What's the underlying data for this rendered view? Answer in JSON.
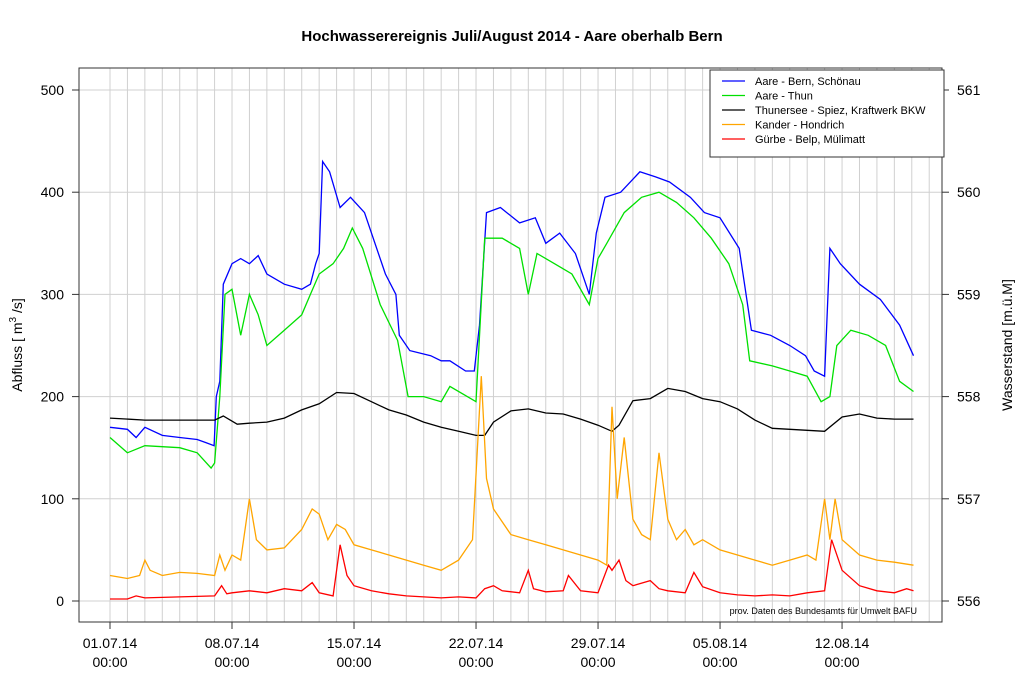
{
  "chart_data": {
    "type": "line",
    "title": "Hochwasserereignis Juli/August 2014 - Aare oberhalb Bern",
    "ylabel": "Abfluss [ m³/s]",
    "ylabel_main": "Abfluss [ m",
    "ylabel_sup": "3",
    "ylabel_end": " /s]",
    "y2label": "Wasserstand [m.ü.M]",
    "note": "prov. Daten des Bundesamts für Umwelt BAFU",
    "ylim": [
      0,
      500
    ],
    "y2lim": [
      556,
      561
    ],
    "yticks": [
      0,
      100,
      200,
      300,
      400,
      500
    ],
    "y2ticks": [
      556,
      557,
      558,
      559,
      560,
      561
    ],
    "x_unit": "days since 01.07.14 00:00",
    "xticks": [
      {
        "day": 0,
        "date": "01.07.14",
        "time": "00:00"
      },
      {
        "day": 7,
        "date": "08.07.14",
        "time": "00:00"
      },
      {
        "day": 14,
        "date": "15.07.14",
        "time": "00:00"
      },
      {
        "day": 21,
        "date": "22.07.14",
        "time": "00:00"
      },
      {
        "day": 28,
        "date": "29.07.14",
        "time": "00:00"
      },
      {
        "day": 35,
        "date": "05.08.14",
        "time": "00:00"
      },
      {
        "day": 42,
        "date": "12.08.14",
        "time": "00:00"
      }
    ],
    "grid": true,
    "legend_position": "top-right",
    "series": [
      {
        "name": "Aare - Bern, Schönau",
        "color": "#0000ff",
        "axis": "left",
        "x": [
          0,
          1,
          1.5,
          2,
          3,
          4,
          5,
          5.5,
          5.97,
          6.1,
          6.3,
          6.5,
          7,
          7.5,
          8,
          8.5,
          9,
          10,
          11,
          11.5,
          11.8,
          12.0,
          12.2,
          12.6,
          13.2,
          13.8,
          14.6,
          15.8,
          16.4,
          16.6,
          17.2,
          18.4,
          19,
          19.5,
          20.4,
          20.9,
          21.2,
          21.6,
          22.4,
          23.5,
          24.4,
          25,
          25.8,
          26.7,
          27.5,
          27.9,
          28.4,
          29.3,
          30.4,
          31.3,
          32.1,
          33.3,
          34.1,
          35,
          36.1,
          36.8,
          37.9,
          39,
          39.9,
          40.4,
          41,
          41.3,
          41.9,
          43,
          44.2,
          45.3,
          46.1
        ],
        "y": [
          170,
          168,
          160,
          170,
          162,
          160,
          158,
          155,
          152,
          200,
          215,
          310,
          330,
          335,
          330,
          338,
          320,
          310,
          305,
          310,
          330,
          340,
          430,
          420,
          385,
          395,
          380,
          320,
          300,
          260,
          245,
          240,
          235,
          235,
          225,
          225,
          270,
          380,
          385,
          370,
          375,
          350,
          360,
          340,
          300,
          360,
          395,
          400,
          420,
          415,
          410,
          395,
          380,
          375,
          345,
          265,
          260,
          250,
          240,
          225,
          220,
          345,
          330,
          310,
          295,
          270,
          240
        ]
      },
      {
        "name": "Aare - Thun",
        "color": "#00e000",
        "axis": "left",
        "x": [
          0,
          1,
          2,
          4,
          5,
          5.8,
          6,
          6.3,
          6.6,
          7,
          7.5,
          8,
          8.5,
          9,
          10,
          11,
          11.5,
          12,
          12.8,
          13.4,
          13.9,
          14.5,
          15.5,
          16.5,
          17.1,
          18,
          19,
          19.5,
          20.5,
          21,
          21.5,
          22.5,
          23.5,
          24,
          24.5,
          25.5,
          26.5,
          27.5,
          28,
          28.5,
          29.5,
          30.5,
          31.5,
          32.5,
          33.5,
          34.5,
          35.5,
          36.3,
          36.7,
          38,
          39,
          40,
          40.8,
          41.3,
          41.7,
          42.5,
          43.5,
          44.5,
          45.3,
          46.1
        ],
        "y": [
          160,
          145,
          152,
          150,
          145,
          130,
          135,
          200,
          300,
          305,
          260,
          300,
          280,
          250,
          265,
          280,
          300,
          320,
          330,
          345,
          365,
          345,
          290,
          255,
          200,
          200,
          195,
          210,
          200,
          195,
          355,
          355,
          345,
          300,
          340,
          330,
          320,
          290,
          335,
          350,
          380,
          395,
          400,
          390,
          375,
          355,
          330,
          290,
          235,
          230,
          225,
          220,
          195,
          200,
          250,
          265,
          260,
          250,
          215,
          205
        ]
      },
      {
        "name": "Thunersee - Spiez, Kraftwerk BKW",
        "color": "#000000",
        "axis": "right",
        "x": [
          0,
          2,
          4,
          6,
          6.5,
          7.3,
          8,
          9,
          10,
          11,
          12,
          13,
          14,
          15,
          16,
          17,
          18,
          19,
          20,
          21,
          21.5,
          22,
          23,
          24,
          25,
          26,
          27,
          28,
          28.8,
          29.2,
          30,
          31,
          32,
          33,
          34,
          35,
          36,
          37,
          38,
          39,
          40,
          41,
          42,
          43,
          44,
          45,
          46.1
        ],
        "y": [
          557.79,
          557.77,
          557.77,
          557.77,
          557.81,
          557.73,
          557.74,
          557.75,
          557.79,
          557.87,
          557.93,
          558.04,
          558.03,
          557.95,
          557.87,
          557.82,
          557.75,
          557.7,
          557.66,
          557.62,
          557.62,
          557.75,
          557.86,
          557.88,
          557.84,
          557.83,
          557.78,
          557.72,
          557.66,
          557.72,
          557.96,
          557.98,
          558.08,
          558.05,
          557.98,
          557.95,
          557.88,
          557.77,
          557.69,
          557.68,
          557.67,
          557.66,
          557.8,
          557.83,
          557.79,
          557.78,
          557.78
        ]
      },
      {
        "name": "Kander - Hondrich",
        "color": "#ffa500",
        "axis": "left",
        "x": [
          0,
          1,
          1.7,
          2,
          2.3,
          3,
          4,
          5,
          6,
          6.3,
          6.6,
          7,
          7.5,
          8,
          8.4,
          9,
          10,
          11,
          11.6,
          12,
          12.5,
          13,
          13.5,
          14,
          15,
          16,
          17,
          18,
          19,
          20,
          20.8,
          21.3,
          21.6,
          22,
          23,
          24,
          25,
          26,
          27,
          28,
          28.5,
          28.8,
          29.1,
          29.5,
          30,
          30.5,
          31,
          31.5,
          32,
          32.5,
          33,
          33.5,
          34,
          35,
          36,
          37,
          38,
          39,
          40,
          40.5,
          41,
          41.3,
          41.6,
          42,
          43,
          44,
          45,
          46.1
        ],
        "y": [
          25,
          22,
          25,
          40,
          30,
          25,
          28,
          27,
          25,
          45,
          30,
          45,
          40,
          100,
          60,
          50,
          52,
          70,
          90,
          85,
          60,
          75,
          70,
          55,
          50,
          45,
          40,
          35,
          30,
          40,
          60,
          220,
          120,
          90,
          65,
          60,
          55,
          50,
          45,
          40,
          35,
          190,
          100,
          160,
          80,
          65,
          60,
          145,
          80,
          60,
          70,
          55,
          60,
          50,
          45,
          40,
          35,
          40,
          45,
          40,
          100,
          60,
          100,
          60,
          45,
          40,
          38,
          35
        ]
      },
      {
        "name": "Gürbe - Belp, Mülimatt",
        "color": "#ff0000",
        "axis": "left",
        "x": [
          0,
          1,
          1.5,
          2,
          4,
          6,
          6.4,
          6.7,
          7,
          8,
          9,
          10,
          11,
          11.6,
          12,
          12.8,
          13.2,
          13.6,
          14,
          15,
          16,
          17,
          18,
          19,
          20,
          21,
          21.5,
          22,
          22.5,
          23.5,
          24,
          24.3,
          25,
          26,
          26.3,
          27,
          28,
          28.6,
          28.8,
          29.2,
          29.6,
          30,
          31,
          31.5,
          32,
          33,
          33.5,
          34,
          35,
          36,
          37,
          38,
          39,
          40,
          41,
          41.4,
          41.8,
          42,
          43,
          44,
          45,
          45.7,
          46.1
        ],
        "y": [
          2,
          2,
          5,
          3,
          4,
          5,
          15,
          7,
          8,
          10,
          8,
          12,
          10,
          18,
          8,
          5,
          55,
          25,
          15,
          10,
          7,
          5,
          4,
          3,
          4,
          3,
          12,
          15,
          10,
          8,
          30,
          12,
          9,
          10,
          25,
          10,
          8,
          35,
          30,
          40,
          20,
          15,
          20,
          12,
          10,
          8,
          28,
          14,
          8,
          6,
          5,
          6,
          5,
          8,
          10,
          60,
          40,
          30,
          15,
          10,
          8,
          12,
          10
        ]
      }
    ]
  }
}
